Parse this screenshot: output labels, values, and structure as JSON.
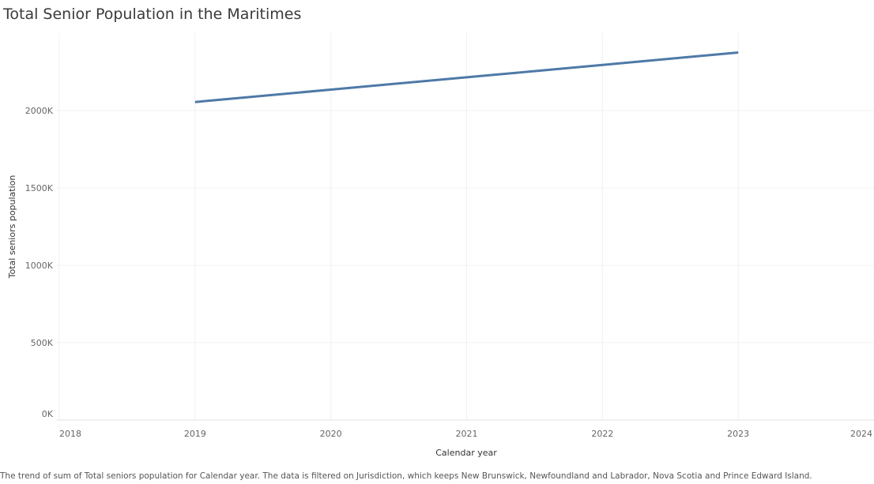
{
  "chart_data": {
    "type": "line",
    "title": "Total Senior Population in the Maritimes",
    "xlabel": "Calendar year",
    "ylabel": "Total seniors population",
    "x_ticks": [
      "2018",
      "2019",
      "2020",
      "2021",
      "2022",
      "2023",
      "2024"
    ],
    "y_ticks": [
      "0K",
      "500K",
      "1000K",
      "1500K",
      "2000K"
    ],
    "xlim": [
      2018,
      2024
    ],
    "ylim": [
      0,
      2500000
    ],
    "grid": true,
    "series": [
      {
        "x": [
          2019,
          2020,
          2021,
          2022,
          2023
        ],
        "y": [
          2055000,
          2135000,
          2215000,
          2295000,
          2375000
        ],
        "color": "#4e79a7"
      }
    ],
    "caption": "The trend of sum of Total seniors population for Calendar year.  The data is filtered on Jurisdiction, which keeps New Brunswick, Newfoundland and Labrador, Nova Scotia and Prince Edward Island."
  }
}
